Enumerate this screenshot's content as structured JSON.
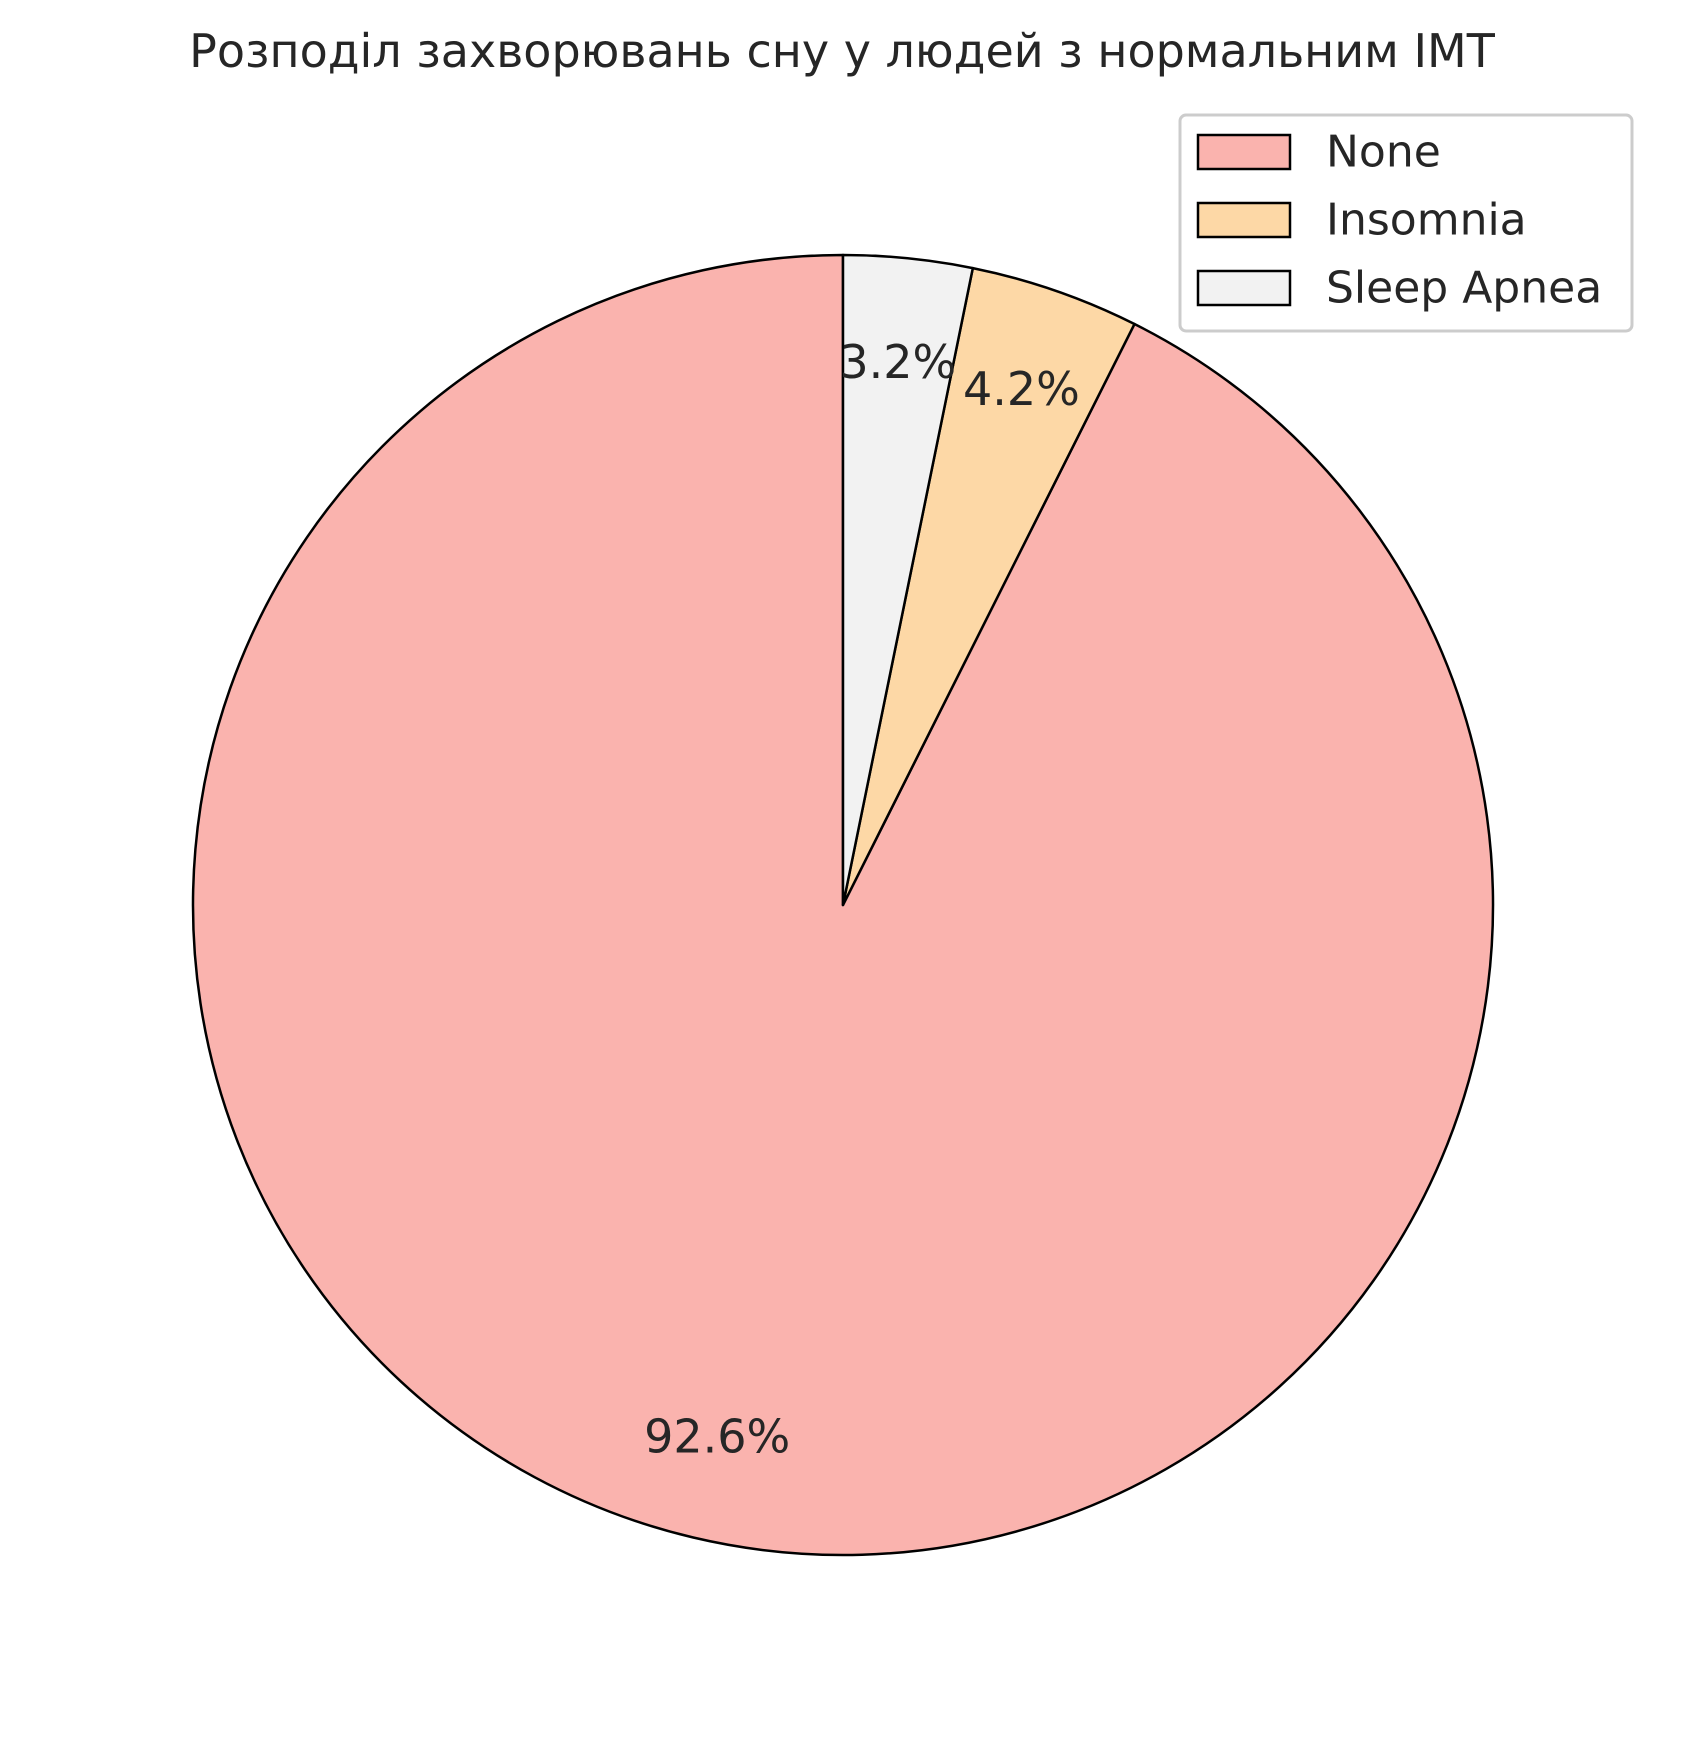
{
  "chart_data": {
    "type": "pie",
    "title": "Розподіл захворювань сну у людей з нормальним ІМТ",
    "slices": [
      {
        "label": "None",
        "value": 92.6,
        "pct_label": "92.6%",
        "color": "#fab3ae"
      },
      {
        "label": "Insomnia",
        "value": 4.2,
        "pct_label": "4.2%",
        "color": "#fdd8a6"
      },
      {
        "label": "Sleep Apnea",
        "value": 3.2,
        "pct_label": "3.2%",
        "color": "#f2f2f2"
      }
    ],
    "start_angle_deg": 90,
    "direction": "counterclockwise",
    "edge_color": "#000000",
    "legend_position": "top-right"
  }
}
